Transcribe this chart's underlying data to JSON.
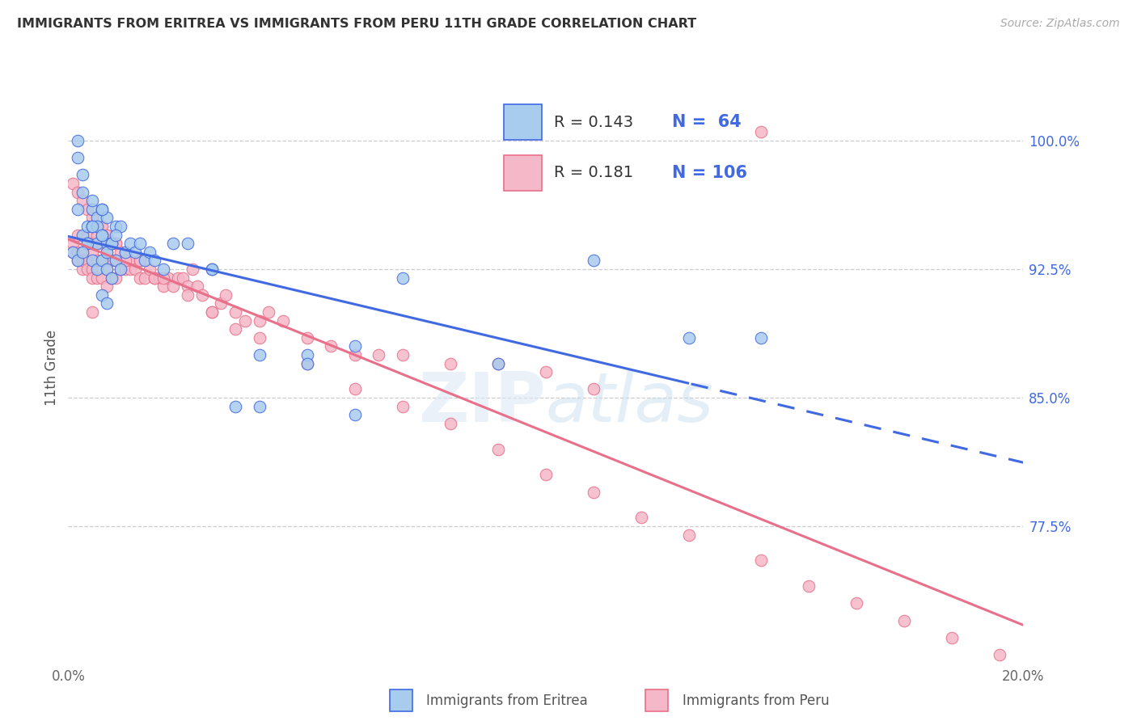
{
  "title": "IMMIGRANTS FROM ERITREA VS IMMIGRANTS FROM PERU 11TH GRADE CORRELATION CHART",
  "source": "Source: ZipAtlas.com",
  "ylabel_label": "11th Grade",
  "right_yticks": [
    1.0,
    0.925,
    0.85,
    0.775
  ],
  "right_ytick_labels": [
    "100.0%",
    "92.5%",
    "85.0%",
    "77.5%"
  ],
  "xlim": [
    0.0,
    0.2
  ],
  "ylim": [
    0.695,
    1.04
  ],
  "eritrea_color": "#A8CCEE",
  "peru_color": "#F5B8C8",
  "trend_eritrea_color": "#4169E1",
  "trend_peru_color": "#E8708A",
  "legend_R_eritrea": "0.143",
  "legend_N_eritrea": "64",
  "legend_R_peru": "0.181",
  "legend_N_peru": "106",
  "eritrea_x": [
    0.001,
    0.002,
    0.002,
    0.003,
    0.003,
    0.004,
    0.004,
    0.005,
    0.005,
    0.005,
    0.006,
    0.006,
    0.006,
    0.007,
    0.007,
    0.007,
    0.007,
    0.008,
    0.008,
    0.008,
    0.008,
    0.009,
    0.009,
    0.01,
    0.01,
    0.011,
    0.011,
    0.012,
    0.013,
    0.014,
    0.015,
    0.016,
    0.017,
    0.018,
    0.02,
    0.022,
    0.025,
    0.03,
    0.035,
    0.04,
    0.05,
    0.06,
    0.07,
    0.09,
    0.11,
    0.13,
    0.002,
    0.003,
    0.004,
    0.005,
    0.006,
    0.007,
    0.008,
    0.009,
    0.01,
    0.002,
    0.003,
    0.005,
    0.007,
    0.03,
    0.04,
    0.05,
    0.06,
    0.145
  ],
  "eritrea_y": [
    0.935,
    0.96,
    1.0,
    0.98,
    0.945,
    0.95,
    0.94,
    0.93,
    0.95,
    0.96,
    0.925,
    0.94,
    0.955,
    0.91,
    0.93,
    0.945,
    0.96,
    0.905,
    0.925,
    0.94,
    0.955,
    0.92,
    0.94,
    0.93,
    0.95,
    0.925,
    0.95,
    0.935,
    0.94,
    0.935,
    0.94,
    0.93,
    0.935,
    0.93,
    0.925,
    0.94,
    0.94,
    0.925,
    0.845,
    0.845,
    0.875,
    0.88,
    0.92,
    0.87,
    0.93,
    0.885,
    0.99,
    0.97,
    0.94,
    0.965,
    0.95,
    0.96,
    0.935,
    0.94,
    0.945,
    0.93,
    0.935,
    0.95,
    0.945,
    0.925,
    0.875,
    0.87,
    0.84,
    0.885
  ],
  "peru_x": [
    0.001,
    0.001,
    0.002,
    0.002,
    0.002,
    0.003,
    0.003,
    0.003,
    0.004,
    0.004,
    0.004,
    0.005,
    0.005,
    0.005,
    0.005,
    0.006,
    0.006,
    0.006,
    0.007,
    0.007,
    0.007,
    0.007,
    0.008,
    0.008,
    0.008,
    0.008,
    0.009,
    0.009,
    0.009,
    0.01,
    0.01,
    0.01,
    0.011,
    0.011,
    0.012,
    0.012,
    0.013,
    0.013,
    0.014,
    0.015,
    0.015,
    0.016,
    0.017,
    0.018,
    0.019,
    0.02,
    0.021,
    0.022,
    0.023,
    0.024,
    0.025,
    0.026,
    0.027,
    0.028,
    0.03,
    0.032,
    0.033,
    0.035,
    0.037,
    0.04,
    0.042,
    0.045,
    0.05,
    0.055,
    0.06,
    0.065,
    0.07,
    0.08,
    0.09,
    0.1,
    0.11,
    0.001,
    0.002,
    0.003,
    0.004,
    0.005,
    0.006,
    0.007,
    0.008,
    0.009,
    0.01,
    0.012,
    0.015,
    0.018,
    0.02,
    0.025,
    0.03,
    0.035,
    0.04,
    0.05,
    0.06,
    0.07,
    0.08,
    0.09,
    0.1,
    0.11,
    0.12,
    0.13,
    0.145,
    0.155,
    0.165,
    0.175,
    0.185,
    0.195,
    0.005,
    0.145
  ],
  "peru_y": [
    0.94,
    0.935,
    0.945,
    0.935,
    0.93,
    0.935,
    0.925,
    0.93,
    0.93,
    0.945,
    0.925,
    0.925,
    0.935,
    0.94,
    0.92,
    0.92,
    0.93,
    0.945,
    0.92,
    0.93,
    0.94,
    0.95,
    0.915,
    0.925,
    0.935,
    0.945,
    0.92,
    0.93,
    0.94,
    0.92,
    0.93,
    0.94,
    0.925,
    0.935,
    0.925,
    0.935,
    0.925,
    0.93,
    0.925,
    0.93,
    0.92,
    0.92,
    0.925,
    0.92,
    0.92,
    0.915,
    0.92,
    0.915,
    0.92,
    0.92,
    0.915,
    0.925,
    0.915,
    0.91,
    0.9,
    0.905,
    0.91,
    0.9,
    0.895,
    0.895,
    0.9,
    0.895,
    0.885,
    0.88,
    0.875,
    0.875,
    0.875,
    0.87,
    0.87,
    0.865,
    0.855,
    0.975,
    0.97,
    0.965,
    0.96,
    0.955,
    0.95,
    0.95,
    0.945,
    0.94,
    0.94,
    0.93,
    0.93,
    0.92,
    0.92,
    0.91,
    0.9,
    0.89,
    0.885,
    0.87,
    0.855,
    0.845,
    0.835,
    0.82,
    0.805,
    0.795,
    0.78,
    0.77,
    0.755,
    0.74,
    0.73,
    0.72,
    0.71,
    0.7,
    0.9,
    1.005
  ]
}
